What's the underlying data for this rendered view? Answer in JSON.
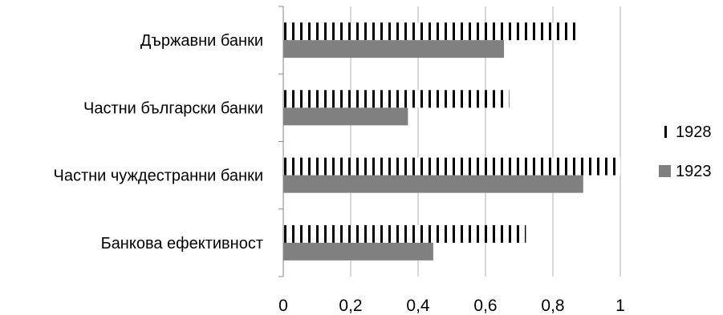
{
  "chart_data": {
    "type": "bar",
    "orientation": "horizontal",
    "categories": [
      "Държавни банки",
      "Частни български банки",
      "Частни чуждестранни банки",
      "Банкова ефективност"
    ],
    "series": [
      {
        "name": "1928",
        "values": [
          0.875,
          0.67,
          1.0,
          0.72
        ],
        "pattern": "vertical-stripes",
        "color": "#000000"
      },
      {
        "name": "1923",
        "values": [
          0.655,
          0.37,
          0.89,
          0.445
        ],
        "pattern": "solid",
        "color": "#808080"
      }
    ],
    "xlim": [
      0,
      1
    ],
    "xticks": [
      "0",
      "0,2",
      "0,4",
      "0,6",
      "0,8",
      "1"
    ],
    "grid": "vertical",
    "legend_position": "right",
    "title": "",
    "xlabel": "",
    "ylabel": ""
  }
}
